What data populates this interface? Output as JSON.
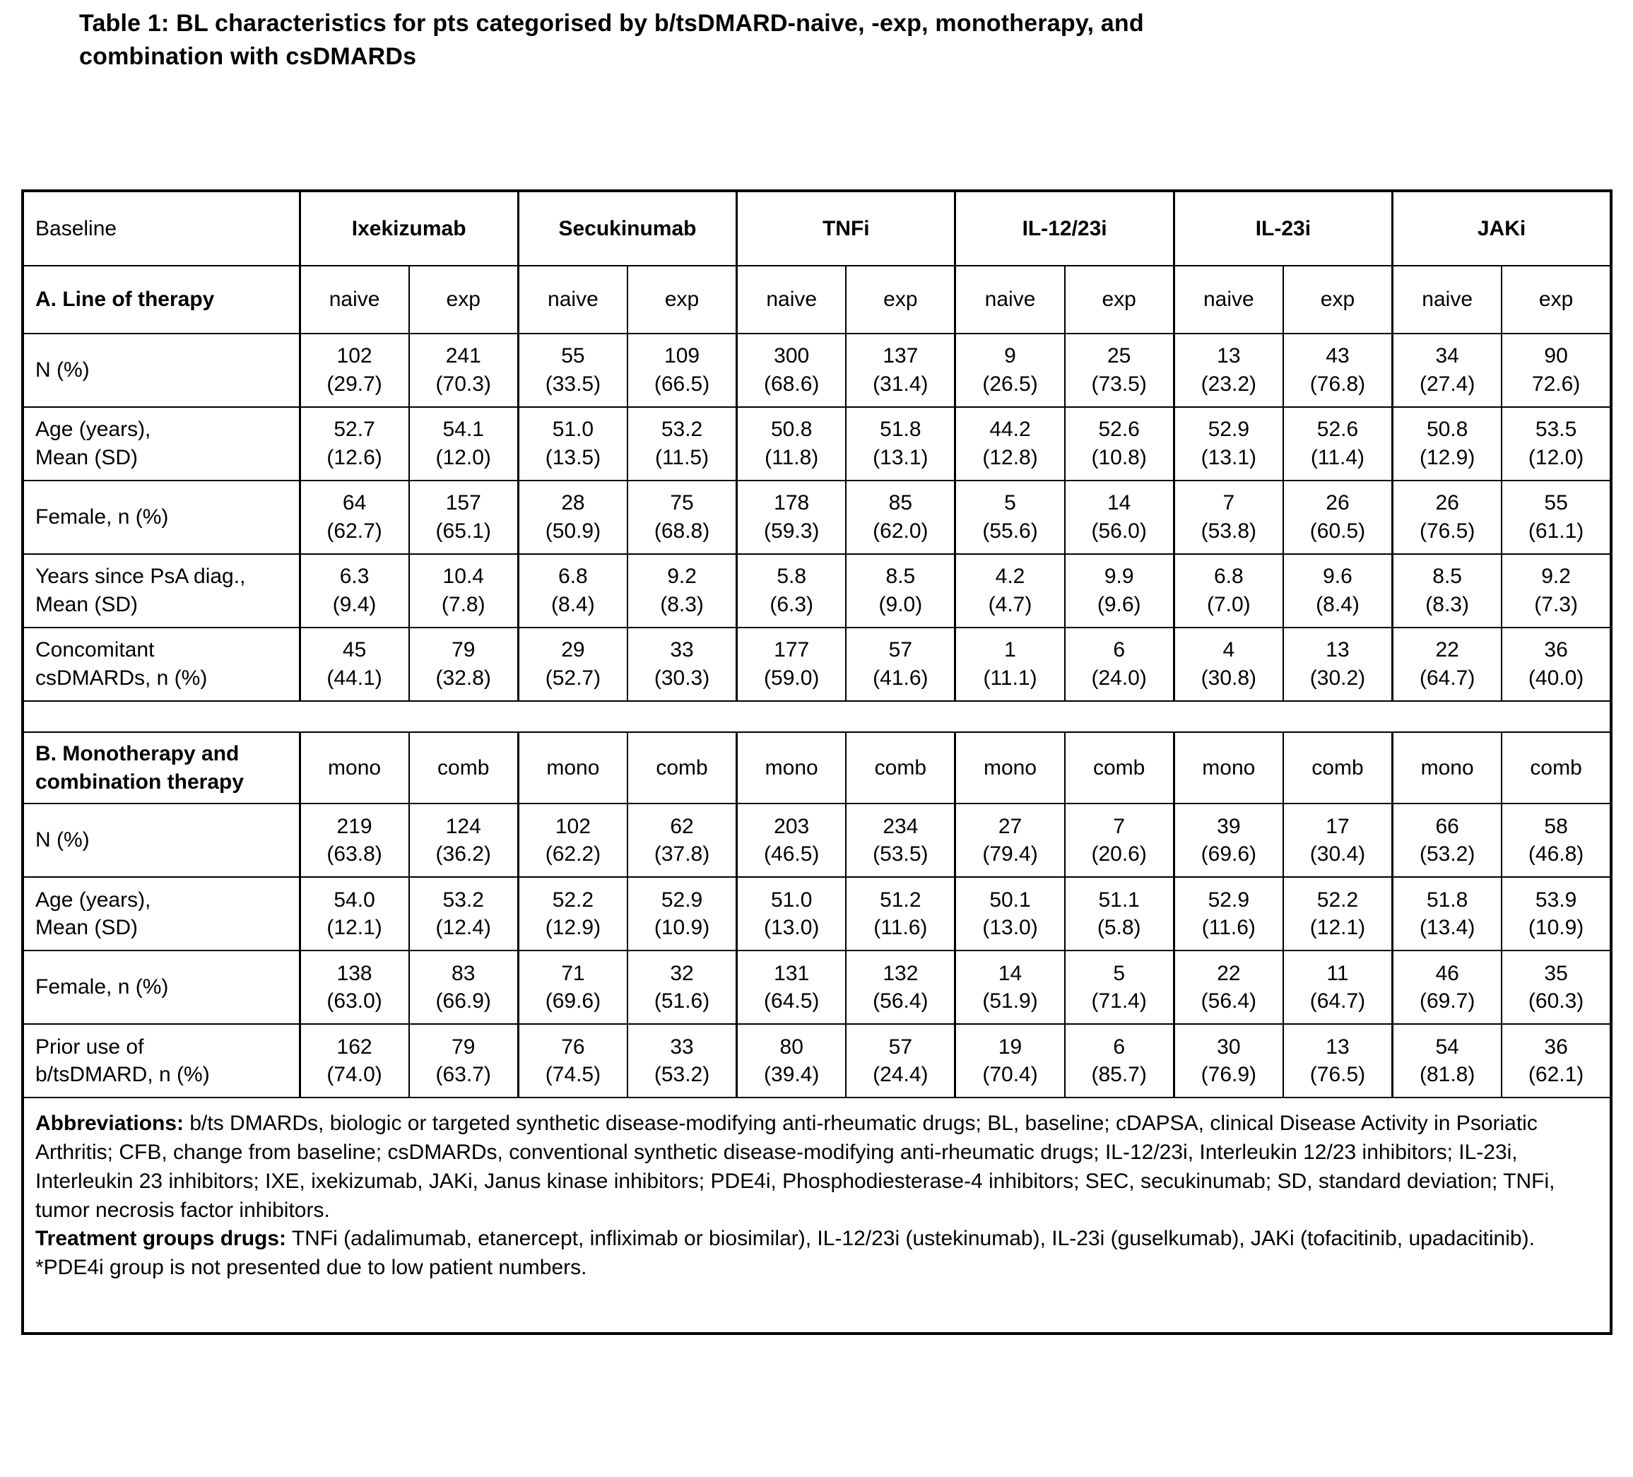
{
  "title": "Table 1: BL characteristics for pts categorised by b/tsDMARD-naive, -exp, monotherapy, and\ncombination with csDMARDs",
  "table": {
    "corner_label": "Baseline",
    "drug_groups": [
      "Ixekizumab",
      "Secukinumab",
      "TNFi",
      "IL-12/23i",
      "IL-23i",
      "JAKi"
    ],
    "sections": [
      {
        "label": "A. Line of therapy",
        "sub_headers": [
          "naive",
          "exp"
        ],
        "rows": [
          {
            "label": "N (%)",
            "cells": [
              "102\n(29.7)",
              "241\n(70.3)",
              "55\n(33.5)",
              "109\n(66.5)",
              "300\n(68.6)",
              "137\n(31.4)",
              "9\n(26.5)",
              "25\n(73.5)",
              "13\n(23.2)",
              "43\n(76.8)",
              "34\n(27.4)",
              "90\n72.6)"
            ]
          },
          {
            "label": "Age (years),\nMean (SD)",
            "cells": [
              "52.7\n(12.6)",
              "54.1\n(12.0)",
              "51.0\n(13.5)",
              "53.2\n(11.5)",
              "50.8\n(11.8)",
              "51.8\n(13.1)",
              "44.2\n(12.8)",
              "52.6\n(10.8)",
              "52.9\n(13.1)",
              "52.6\n(11.4)",
              "50.8\n(12.9)",
              "53.5\n(12.0)"
            ]
          },
          {
            "label": "Female, n (%)",
            "cells": [
              "64\n(62.7)",
              "157\n(65.1)",
              "28\n(50.9)",
              "75\n(68.8)",
              "178\n(59.3)",
              "85\n(62.0)",
              "5\n(55.6)",
              "14\n(56.0)",
              "7\n(53.8)",
              "26\n(60.5)",
              "26\n(76.5)",
              "55\n(61.1)"
            ]
          },
          {
            "label": "Years since PsA diag.,\nMean (SD)",
            "cells": [
              "6.3\n(9.4)",
              "10.4\n(7.8)",
              "6.8\n(8.4)",
              "9.2\n(8.3)",
              "5.8\n(6.3)",
              "8.5\n(9.0)",
              "4.2\n(4.7)",
              "9.9\n(9.6)",
              "6.8\n(7.0)",
              "9.6\n(8.4)",
              "8.5\n(8.3)",
              "9.2\n(7.3)"
            ]
          },
          {
            "label": "Concomitant\ncsDMARDs, n (%)",
            "cells": [
              "45\n(44.1)",
              "79\n(32.8)",
              "29\n(52.7)",
              "33\n(30.3)",
              "177\n(59.0)",
              "57\n(41.6)",
              "1\n(11.1)",
              "6\n(24.0)",
              "4\n(30.8)",
              "13\n(30.2)",
              "22\n(64.7)",
              "36\n(40.0)"
            ]
          }
        ]
      },
      {
        "label": "B. Monotherapy and\ncombination therapy",
        "sub_headers": [
          "mono",
          "comb"
        ],
        "rows": [
          {
            "label": "N (%)",
            "cells": [
              "219\n(63.8)",
              "124\n(36.2)",
              "102\n(62.2)",
              "62\n(37.8)",
              "203\n(46.5)",
              "234\n(53.5)",
              "27\n(79.4)",
              "7\n(20.6)",
              "39\n(69.6)",
              "17\n(30.4)",
              "66\n(53.2)",
              "58\n(46.8)"
            ]
          },
          {
            "label": "Age (years),\nMean (SD)",
            "cells": [
              "54.0\n(12.1)",
              "53.2\n(12.4)",
              "52.2\n(12.9)",
              "52.9\n(10.9)",
              "51.0\n(13.0)",
              "51.2\n(11.6)",
              "50.1\n(13.0)",
              "51.1\n(5.8)",
              "52.9\n(11.6)",
              "52.2\n(12.1)",
              "51.8\n(13.4)",
              "53.9\n(10.9)"
            ]
          },
          {
            "label": "Female, n (%)",
            "cells": [
              "138\n(63.0)",
              "83\n(66.9)",
              "71\n(69.6)",
              "32\n(51.6)",
              "131\n(64.5)",
              "132\n(56.4)",
              "14\n(51.9)",
              "5\n(71.4)",
              "22\n(56.4)",
              "11\n(64.7)",
              "46\n(69.7)",
              "35\n(60.3)"
            ]
          },
          {
            "label": "Prior use of\nb/tsDMARD, n (%)",
            "cells": [
              "162\n(74.0)",
              "79\n(63.7)",
              "76\n(74.5)",
              "33\n(53.2)",
              "80\n(39.4)",
              "57\n(24.4)",
              "19\n(70.4)",
              "6\n(85.7)",
              "30\n(76.9)",
              "13\n(76.5)",
              "54\n(81.8)",
              "36\n(62.1)"
            ]
          }
        ]
      }
    ],
    "footnotes": [
      {
        "lead": "Abbreviations:",
        "text": " b/ts DMARDs, biologic or targeted synthetic disease-modifying anti-rheumatic drugs; BL, baseline; cDAPSA, clinical Disease Activity in Psoriatic Arthritis; CFB, change from baseline; csDMARDs, conventional synthetic disease-modifying anti-rheumatic drugs; IL-12/23i, Interleukin 12/23 inhibitors; IL-23i, Interleukin 23 inhibitors; IXE, ixekizumab, JAKi, Janus kinase inhibitors; PDE4i, Phosphodiesterase-4 inhibitors; SEC, secukinumab; SD, standard deviation; TNFi, tumor necrosis factor inhibitors."
      },
      {
        "lead": "Treatment groups drugs:",
        "text": " TNFi (adalimumab, etanercept, infliximab or biosimilar), IL-12/23i (ustekinumab), IL-23i (guselkumab), JAKi (tofacitinib, upadacitinib)."
      },
      {
        "lead": "",
        "text": "*PDE4i group is not presented due to low patient numbers."
      }
    ]
  }
}
